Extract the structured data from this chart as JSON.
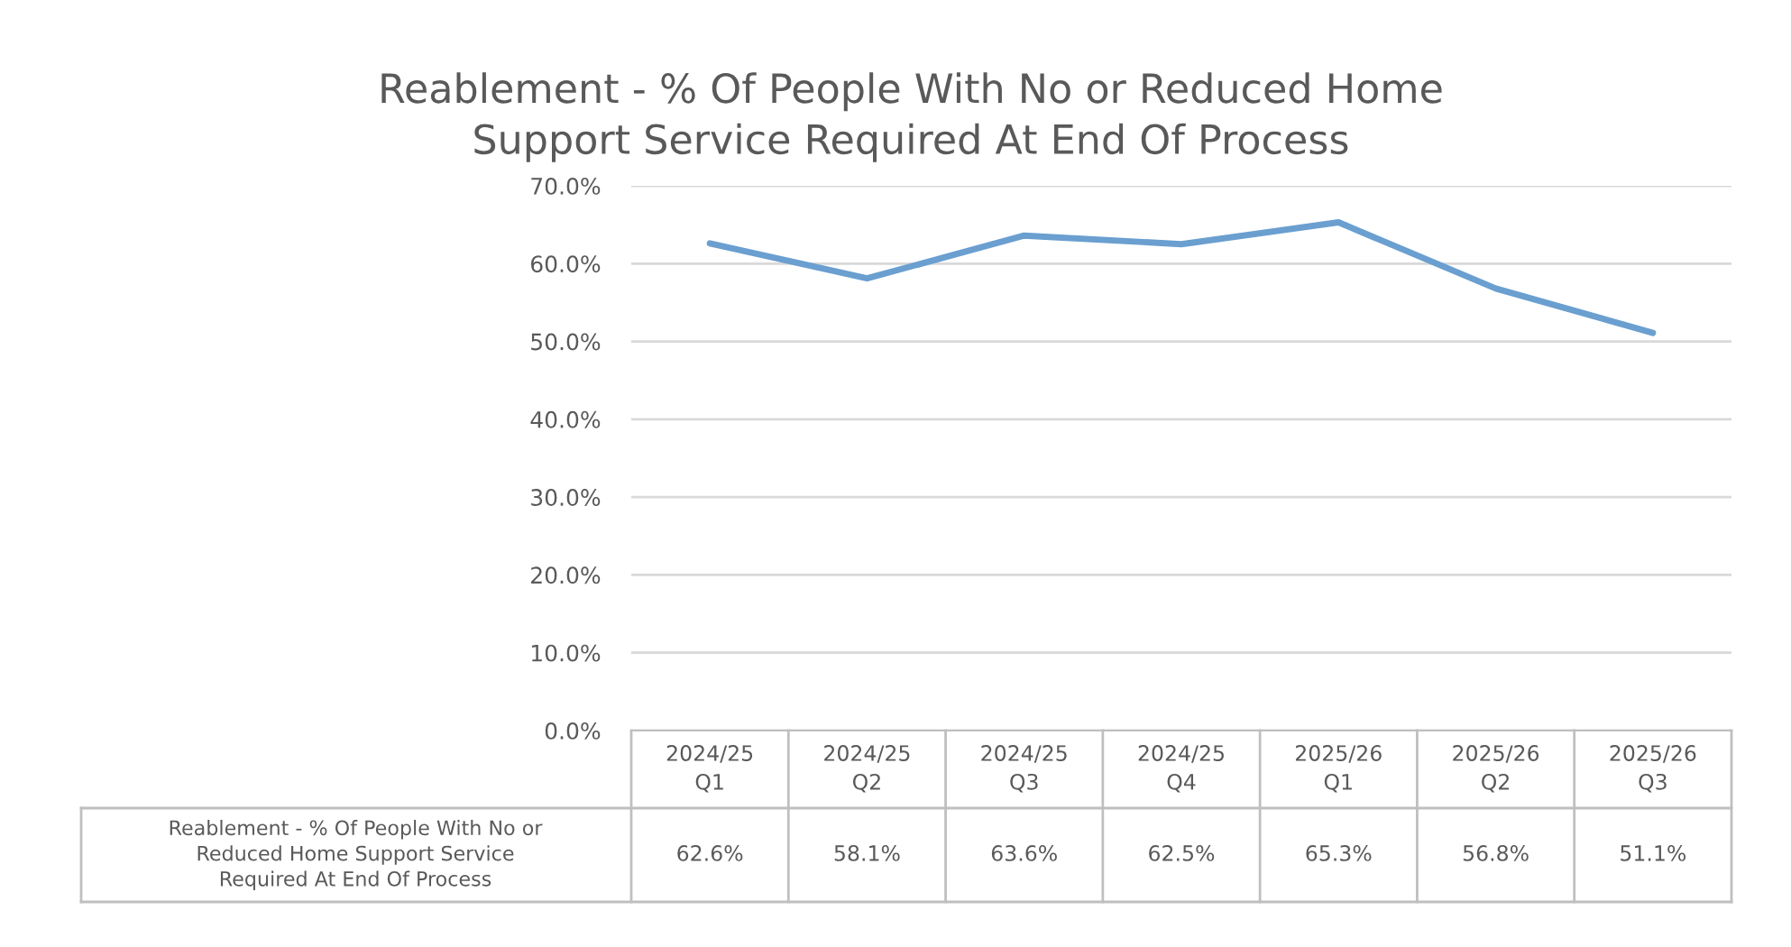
{
  "chart_data": {
    "type": "line",
    "title": "Reablement - % Of People With No or Reduced Home\nSupport Service Required At End Of Process",
    "categories": [
      "2024/25\nQ1",
      "2024/25\nQ2",
      "2024/25\nQ3",
      "2024/25\nQ4",
      "2025/26\nQ1",
      "2025/26\nQ2",
      "2025/26\nQ3"
    ],
    "series": [
      {
        "name": "Reablement - % Of People With No or\nReduced Home Support Service\nRequired At End Of Process",
        "color": "#6a9fd0",
        "values": [
          62.6,
          58.1,
          63.6,
          62.5,
          65.3,
          56.8,
          51.1
        ]
      }
    ],
    "value_labels": [
      "62.6%",
      "58.1%",
      "63.6%",
      "62.5%",
      "65.3%",
      "56.8%",
      "51.1%"
    ],
    "ylim": [
      0,
      70
    ],
    "yticks": [
      {
        "value": 0,
        "label": "0.0%"
      },
      {
        "value": 10,
        "label": "10.0%"
      },
      {
        "value": 20,
        "label": "20.0%"
      },
      {
        "value": 30,
        "label": "30.0%"
      },
      {
        "value": 40,
        "label": "40.0%"
      },
      {
        "value": 50,
        "label": "50.0%"
      },
      {
        "value": 60,
        "label": "60.0%"
      },
      {
        "value": 70,
        "label": "70.0%"
      }
    ],
    "grid": "y",
    "legend": false,
    "marker": "none",
    "line_style": "solid"
  }
}
